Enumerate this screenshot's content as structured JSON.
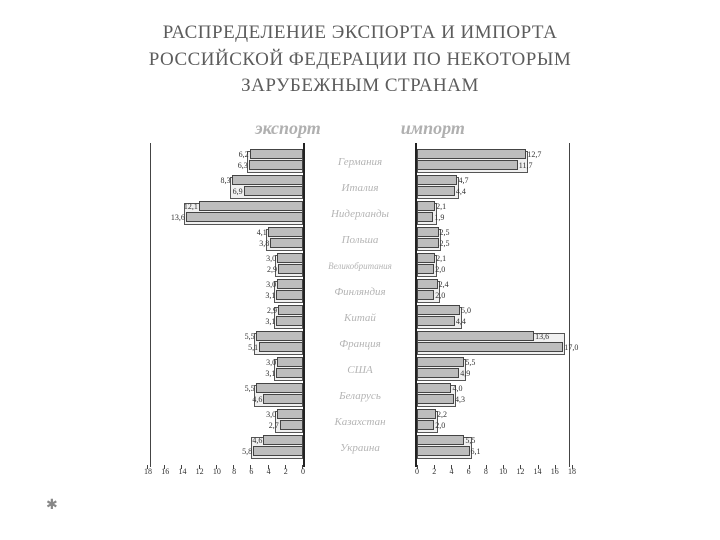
{
  "title_line1": "РАСПРЕДЕЛЕНИЕ ЭКСПОРТА И ИМПОРТА",
  "title_line2": "РОССИЙСКОЙ ФЕДЕРАЦИИ ПО НЕКОТОРЫМ",
  "title_line3": "ЗАРУБЕЖНЫМ СТРАНАМ",
  "left_header": "экспорт",
  "right_header": "импорт",
  "chart": {
    "type": "bidirectional-paired-bar",
    "x_max": 18,
    "x_tick_step": 2,
    "bar_color": "#bdbdbd",
    "bar_border": "#444444",
    "axis_color": "#222222",
    "label_color": "#b5b5b5",
    "countries": [
      {
        "name": "Германия",
        "export": [
          6.2,
          6.3
        ],
        "import": [
          12.7,
          11.7
        ],
        "small": false
      },
      {
        "name": "Италия",
        "export": [
          8.3,
          6.9
        ],
        "import": [
          4.7,
          4.4
        ],
        "small": false
      },
      {
        "name": "Нидерланды",
        "export": [
          12.1,
          13.6
        ],
        "import": [
          2.1,
          1.9
        ],
        "small": false
      },
      {
        "name": "Польша",
        "export": [
          4.1,
          3.8
        ],
        "import": [
          2.5,
          2.5
        ],
        "small": false
      },
      {
        "name": "Великобритания",
        "export": [
          3.0,
          2.9
        ],
        "import": [
          2.1,
          2.0
        ],
        "small": true
      },
      {
        "name": "Финляндия",
        "export": [
          3.0,
          3.1
        ],
        "import": [
          2.4,
          2.0
        ],
        "small": false
      },
      {
        "name": "Китай",
        "export": [
          2.9,
          3.1
        ],
        "import": [
          5.0,
          4.4
        ],
        "small": false
      },
      {
        "name": "Франция",
        "export": [
          5.5,
          5.1
        ],
        "import": [
          13.6,
          17.0
        ],
        "small": false
      },
      {
        "name": "США",
        "export": [
          3.0,
          3.1
        ],
        "import": [
          5.5,
          4.9
        ],
        "small": false
      },
      {
        "name": "Беларусь",
        "export": [
          5.5,
          4.6
        ],
        "import": [
          4.0,
          4.3
        ],
        "small": false
      },
      {
        "name": "Казахстан",
        "export": [
          3.0,
          2.7
        ],
        "import": [
          2.2,
          2.0
        ],
        "small": false
      },
      {
        "name": "Украина",
        "export": [
          4.6,
          5.8
        ],
        "import": [
          5.5,
          6.1
        ],
        "small": false
      }
    ],
    "ticks_left": [
      18,
      16,
      14,
      12,
      10,
      8,
      6,
      4,
      2,
      0
    ],
    "ticks_right": [
      0,
      2,
      4,
      6,
      8,
      10,
      12,
      14,
      16,
      18
    ]
  }
}
